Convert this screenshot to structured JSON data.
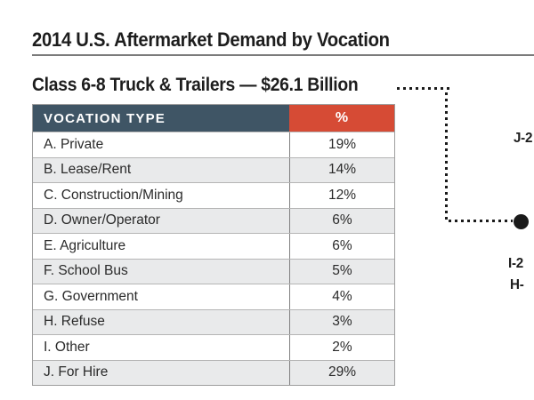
{
  "header": {
    "title": "2014 U.S. Aftermarket Demand by Vocation",
    "subtitle": "Class 6-8 Truck & Trailers — $26.1 Billion"
  },
  "table": {
    "columns": [
      "VOCATION TYPE",
      "%"
    ],
    "rows": [
      {
        "label": "A. Private",
        "value": "19%"
      },
      {
        "label": "B. Lease/Rent",
        "value": "14%"
      },
      {
        "label": "C. Construction/Mining",
        "value": "12%"
      },
      {
        "label": "D. Owner/Operator",
        "value": "6%"
      },
      {
        "label": "E. Agriculture",
        "value": "6%"
      },
      {
        "label": "F. School Bus",
        "value": "5%"
      },
      {
        "label": "G. Government",
        "value": "4%"
      },
      {
        "label": "H. Refuse",
        "value": "3%"
      },
      {
        "label": "I. Other",
        "value": "2%"
      },
      {
        "label": "J. For Hire",
        "value": "29%"
      }
    ]
  },
  "callout_labels": [
    {
      "text": "J-2"
    },
    {
      "text": "I-2"
    },
    {
      "text": "H-"
    }
  ],
  "colors": {
    "header_bg": "#3f5565",
    "percent_header_bg": "#d64b35",
    "row_alt_bg": "#e9eaeb",
    "title_rule": "#7b7b7b",
    "connector_dot": "#1a1a1a"
  },
  "chart_data": {
    "type": "table",
    "title": "2014 U.S. Aftermarket Demand by Vocation",
    "subtitle": "Class 6-8 Truck & Trailers — $26.1 Billion",
    "total_market": "$26.1 Billion",
    "columns": [
      "VOCATION TYPE",
      "%"
    ],
    "categories": [
      "A. Private",
      "B. Lease/Rent",
      "C. Construction/Mining",
      "D. Owner/Operator",
      "E. Agriculture",
      "F. School Bus",
      "G. Government",
      "H. Refuse",
      "I. Other",
      "J. For Hire"
    ],
    "values": [
      19,
      14,
      12,
      6,
      6,
      5,
      4,
      3,
      2,
      29
    ],
    "unit": "%",
    "notes": "Dotted leader from subtitle to a partially cropped pie chart at right edge; visible clipped labels J-2, I-2, H-"
  }
}
